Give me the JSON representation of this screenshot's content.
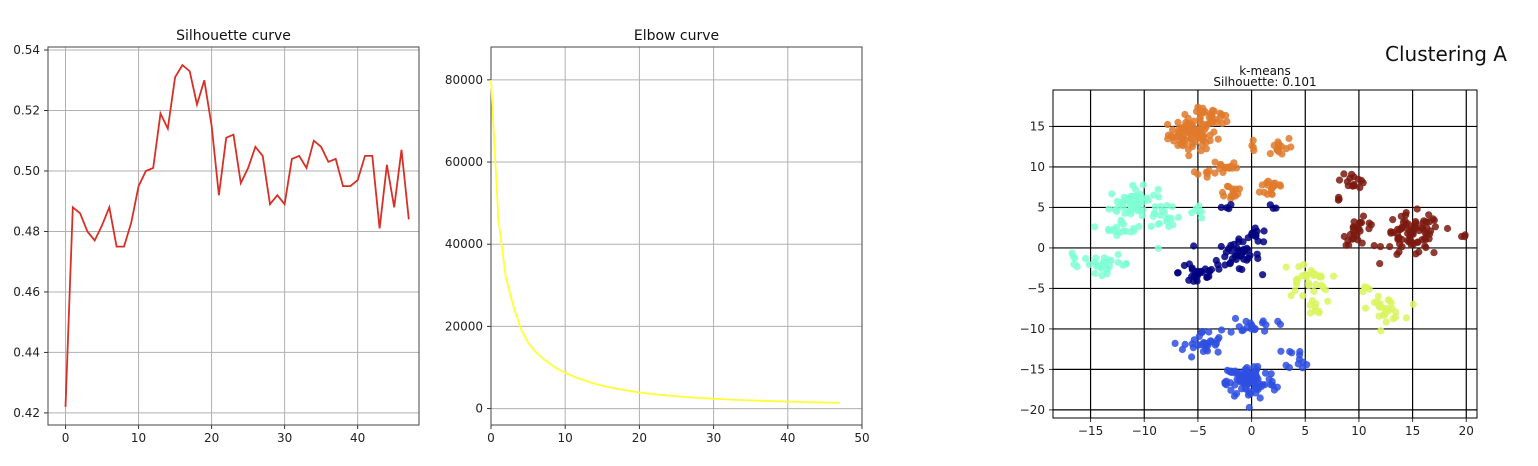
{
  "chart_data": [
    {
      "type": "line",
      "title": "Silhouette curve",
      "xlabel": "",
      "ylabel": "",
      "xlim": [
        -2.4,
        48.4
      ],
      "ylim": [
        0.416,
        0.541
      ],
      "xticks": [
        0,
        10,
        20,
        30,
        40
      ],
      "yticks": [
        0.42,
        0.44,
        0.46,
        0.48,
        0.5,
        0.52,
        0.54
      ],
      "ytick_labels": [
        "0.42",
        "0.44",
        "0.46",
        "0.48",
        "0.50",
        "0.52",
        "0.54"
      ],
      "grid": true,
      "color": "#d73027",
      "x": [
        0,
        1,
        2,
        3,
        4,
        5,
        6,
        7,
        8,
        9,
        10,
        11,
        12,
        13,
        14,
        15,
        16,
        17,
        18,
        19,
        20,
        21,
        22,
        23,
        24,
        25,
        26,
        27,
        28,
        29,
        30,
        31,
        32,
        33,
        34,
        35,
        36,
        37,
        38,
        39,
        40,
        41,
        42,
        43,
        44,
        45,
        46,
        47
      ],
      "y": [
        0.422,
        0.488,
        0.486,
        0.48,
        0.477,
        0.482,
        0.488,
        0.475,
        0.475,
        0.483,
        0.495,
        0.5,
        0.501,
        0.519,
        0.514,
        0.531,
        0.535,
        0.533,
        0.522,
        0.53,
        0.515,
        0.492,
        0.511,
        0.512,
        0.496,
        0.501,
        0.508,
        0.505,
        0.489,
        0.492,
        0.489,
        0.504,
        0.505,
        0.501,
        0.51,
        0.508,
        0.503,
        0.504,
        0.495,
        0.495,
        0.497,
        0.505,
        0.505,
        0.481,
        0.502,
        0.488,
        0.507,
        0.484
      ]
    },
    {
      "type": "line",
      "title": "Elbow curve",
      "xlabel": "",
      "ylabel": "",
      "xlim": [
        0,
        50
      ],
      "ylim": [
        -4000,
        88000
      ],
      "xticks": [
        0,
        10,
        20,
        30,
        40,
        50
      ],
      "yticks": [
        0,
        20000,
        40000,
        60000,
        80000
      ],
      "grid": true,
      "color": "#ffff33",
      "x": [
        0,
        1,
        2,
        3,
        4,
        5,
        6,
        7,
        8,
        9,
        10,
        11,
        12,
        13,
        14,
        15,
        16,
        17,
        18,
        19,
        20,
        21,
        22,
        23,
        24,
        25,
        26,
        27,
        28,
        29,
        30,
        31,
        32,
        33,
        34,
        35,
        36,
        37,
        38,
        39,
        40,
        41,
        42,
        43,
        44,
        45,
        46,
        47
      ],
      "y": [
        80000,
        46000,
        32000,
        25000,
        19500,
        16000,
        13800,
        12200,
        10800,
        9600,
        8700,
        7900,
        7200,
        6600,
        6000,
        5600,
        5200,
        4800,
        4500,
        4200,
        3900,
        3700,
        3500,
        3300,
        3150,
        3000,
        2850,
        2700,
        2600,
        2500,
        2400,
        2300,
        2200,
        2120,
        2050,
        1980,
        1920,
        1860,
        1800,
        1750,
        1700,
        1650,
        1600,
        1560,
        1520,
        1480,
        1440,
        1400
      ]
    },
    {
      "type": "scatter",
      "figure_title": "Clustering A",
      "title": "k-means",
      "subtitle": "Silhouette: 0.101",
      "xlabel": "",
      "ylabel": "",
      "xlim": [
        -18.5,
        21
      ],
      "ylim": [
        -21,
        19.5
      ],
      "xticks": [
        -15,
        -10,
        -5,
        0,
        5,
        10,
        15,
        20
      ],
      "xtick_labels": [
        "−15",
        "−10",
        "−5",
        "0",
        "5",
        "10",
        "15",
        "20"
      ],
      "yticks": [
        -20,
        -15,
        -10,
        -5,
        0,
        5,
        10,
        15
      ],
      "ytick_labels": [
        "−20",
        "−15",
        "−10",
        "−5",
        "0",
        "5",
        "10",
        "15"
      ],
      "grid": true,
      "clusters": [
        {
          "color": "#e07a2c",
          "blobs": [
            {
              "cx": -5.5,
              "cy": 14,
              "rx": 2.5,
              "ry": 2.2,
              "n": 80
            },
            {
              "cx": -4.5,
              "cy": 16.5,
              "rx": 1.5,
              "ry": 1.0,
              "n": 15
            },
            {
              "cx": -3,
              "cy": 16,
              "rx": 1.2,
              "ry": 1.0,
              "n": 12
            },
            {
              "cx": -2.5,
              "cy": 10,
              "rx": 1.3,
              "ry": 1.2,
              "n": 15
            },
            {
              "cx": -4.5,
              "cy": 9,
              "rx": 0.8,
              "ry": 0.8,
              "n": 6
            },
            {
              "cx": -2,
              "cy": 7,
              "rx": 1.5,
              "ry": 1.2,
              "n": 15
            },
            {
              "cx": 2,
              "cy": 7.5,
              "rx": 1.3,
              "ry": 1.6,
              "n": 18
            },
            {
              "cx": 2.5,
              "cy": 12.5,
              "rx": 1.5,
              "ry": 1.5,
              "n": 15
            },
            {
              "cx": 0,
              "cy": 12.5,
              "rx": 0.5,
              "ry": 0.5,
              "n": 3
            }
          ]
        },
        {
          "color": "#7fffd4",
          "blobs": [
            {
              "cx": -11,
              "cy": 5.5,
              "rx": 2.5,
              "ry": 2.2,
              "n": 60
            },
            {
              "cx": -12,
              "cy": 2.5,
              "rx": 2.0,
              "ry": 1.0,
              "n": 15
            },
            {
              "cx": -8,
              "cy": 3,
              "rx": 1.5,
              "ry": 2.0,
              "n": 15
            },
            {
              "cx": -13.5,
              "cy": -2,
              "rx": 2.5,
              "ry": 1.2,
              "n": 25
            },
            {
              "cx": -16.5,
              "cy": -1.5,
              "rx": 0.8,
              "ry": 1.0,
              "n": 5
            },
            {
              "cx": -5,
              "cy": 4.5,
              "rx": 0.8,
              "ry": 1.2,
              "n": 6
            }
          ]
        },
        {
          "color": "#000080",
          "blobs": [
            {
              "cx": -1.5,
              "cy": -1,
              "rx": 2.5,
              "ry": 2.0,
              "n": 40
            },
            {
              "cx": -5,
              "cy": -3,
              "rx": 2.0,
              "ry": 2.2,
              "n": 25
            },
            {
              "cx": 0.5,
              "cy": 1.5,
              "rx": 1.5,
              "ry": 1.0,
              "n": 12
            },
            {
              "cx": -2.5,
              "cy": 5,
              "rx": 0.8,
              "ry": 0.5,
              "n": 4
            },
            {
              "cx": 2,
              "cy": 5,
              "rx": 0.6,
              "ry": 0.5,
              "n": 3
            }
          ]
        },
        {
          "color": "#7b1a10",
          "blobs": [
            {
              "cx": 15,
              "cy": 1.5,
              "rx": 3.0,
              "ry": 3.0,
              "n": 80
            },
            {
              "cx": 9.5,
              "cy": 8.5,
              "rx": 1.3,
              "ry": 1.3,
              "n": 15
            },
            {
              "cx": 10,
              "cy": 2,
              "rx": 1.6,
              "ry": 1.8,
              "n": 25
            },
            {
              "cx": 19.5,
              "cy": 1.5,
              "rx": 0.6,
              "ry": 0.4,
              "n": 3
            },
            {
              "cx": 8,
              "cy": 6,
              "rx": 0.5,
              "ry": 0.5,
              "n": 3
            }
          ]
        },
        {
          "color": "#d9f55e",
          "blobs": [
            {
              "cx": 12.5,
              "cy": -7.5,
              "rx": 1.8,
              "ry": 1.5,
              "n": 25
            },
            {
              "cx": 5,
              "cy": -4,
              "rx": 2.5,
              "ry": 2.5,
              "n": 30
            },
            {
              "cx": 6,
              "cy": -7.5,
              "rx": 1.2,
              "ry": 1.0,
              "n": 8
            },
            {
              "cx": 10.5,
              "cy": -5,
              "rx": 0.8,
              "ry": 0.8,
              "n": 5
            }
          ]
        },
        {
          "color": "#2e4fe0",
          "blobs": [
            {
              "cx": 0,
              "cy": -16.5,
              "rx": 2.5,
              "ry": 2.5,
              "n": 80
            },
            {
              "cx": -4.5,
              "cy": -12,
              "rx": 2.0,
              "ry": 2.0,
              "n": 30
            },
            {
              "cx": 0,
              "cy": -9.5,
              "rx": 2.5,
              "ry": 1.2,
              "n": 20
            },
            {
              "cx": 4.5,
              "cy": -13.5,
              "rx": 1.5,
              "ry": 1.5,
              "n": 12
            },
            {
              "cx": -2,
              "cy": -16,
              "rx": 1.0,
              "ry": 1.5,
              "n": 10
            }
          ]
        }
      ]
    }
  ]
}
